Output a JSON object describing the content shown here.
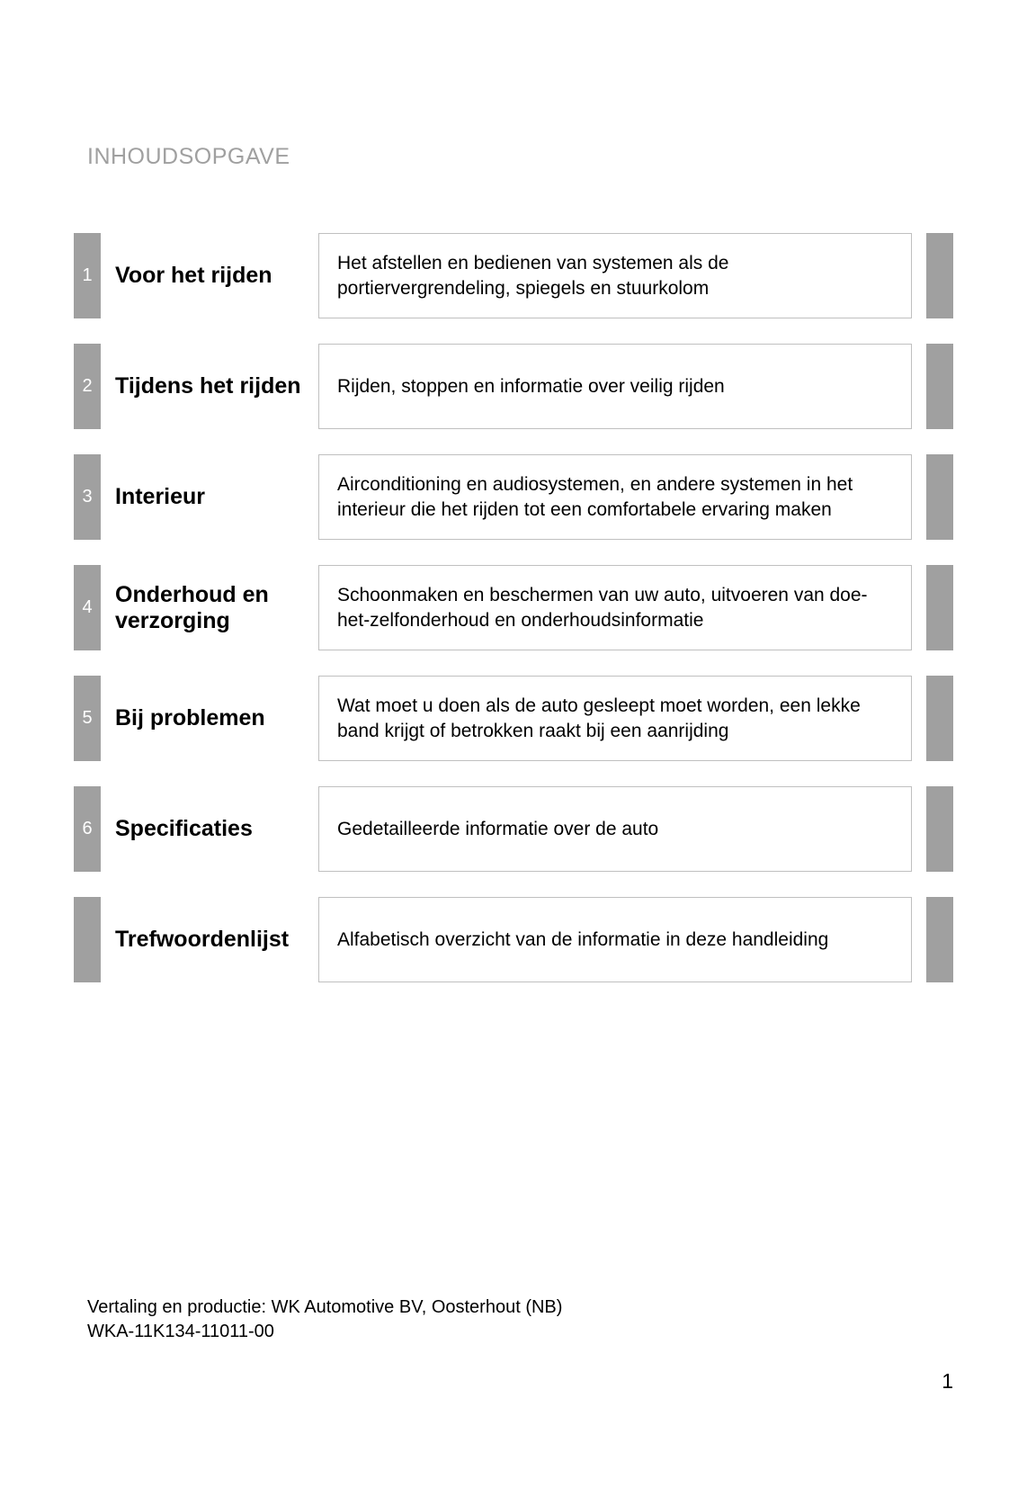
{
  "heading": "INHOUDSOPGAVE",
  "entries": [
    {
      "num": "1",
      "title": "Voor het rijden",
      "desc": "Het afstellen en bedienen van systemen als de portiervergrendeling, spiegels en stuurkolom"
    },
    {
      "num": "2",
      "title": "Tijdens het rijden",
      "desc": "Rijden, stoppen en informatie over veilig rijden"
    },
    {
      "num": "3",
      "title": "Interieur",
      "desc": "Airconditioning en audiosystemen, en andere systemen in het interieur die het rijden tot een comfortabele ervaring maken"
    },
    {
      "num": "4",
      "title": "Onderhoud en verzorging",
      "desc": "Schoonmaken en beschermen van uw auto, uitvoeren van doe-het-zelfonderhoud en onderhoudsinformatie"
    },
    {
      "num": "5",
      "title": "Bij problemen",
      "desc": "Wat moet u doen als de auto gesleept moet worden, een lekke band krijgt of betrokken raakt bij een aanrijding"
    },
    {
      "num": "6",
      "title": "Specificaties",
      "desc": "Gedetailleerde informatie over de auto"
    },
    {
      "num": "",
      "title": "Trefwoordenlijst",
      "desc": "Alfabetisch overzicht van de informatie in deze handleiding"
    }
  ],
  "footer_line1": "Vertaling en productie: WK Automotive BV, Oosterhout (NB)",
  "footer_line2": "WKA-11K134-11011-00",
  "page_number": "1",
  "colors": {
    "tab_gray": "#a0a0a0",
    "border_gray": "#c0c0c0",
    "heading_gray": "#a0a0a0",
    "text": "#000000",
    "background": "#ffffff"
  },
  "typography": {
    "heading_fontsize": 25,
    "title_fontsize": 25,
    "desc_fontsize": 21,
    "footer_fontsize": 20,
    "pagenum_fontsize": 23,
    "title_weight": 700
  }
}
